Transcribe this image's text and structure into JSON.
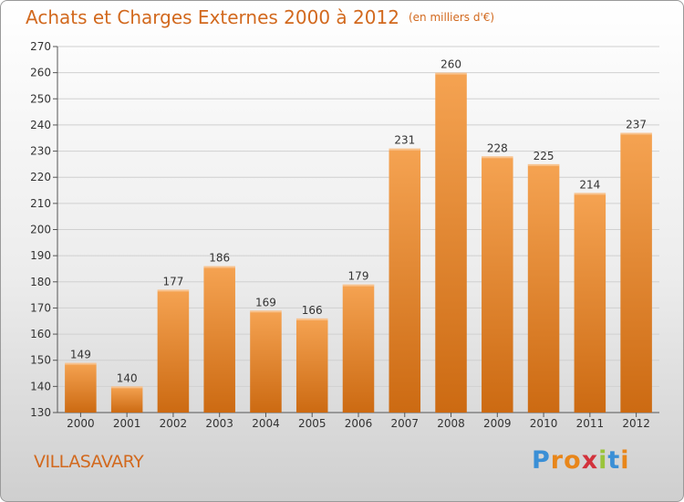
{
  "chart_data": {
    "type": "bar",
    "title": "Achats et Charges Externes 2000 à 2012",
    "subtitle": "(en milliers d'€)",
    "categories": [
      "2000",
      "2001",
      "2002",
      "2003",
      "2004",
      "2005",
      "2006",
      "2007",
      "2008",
      "2009",
      "2010",
      "2011",
      "2012"
    ],
    "values": [
      149,
      140,
      177,
      186,
      169,
      166,
      179,
      231,
      260,
      228,
      225,
      214,
      237
    ],
    "ylim": [
      130,
      270
    ],
    "yticks": [
      130,
      140,
      150,
      160,
      170,
      180,
      190,
      200,
      210,
      220,
      230,
      240,
      250,
      260,
      270
    ],
    "grid": true,
    "bar_color_top": "#f5a352",
    "bar_color_bottom": "#cc6a12"
  },
  "location": "VILLASAVARY",
  "logo": {
    "text": "Proxiti",
    "letter_colors": [
      "#3a8fd6",
      "#e8861a",
      "#e8861a",
      "#d2323c",
      "#9ac43a",
      "#3a8fd6",
      "#e8861a"
    ]
  }
}
